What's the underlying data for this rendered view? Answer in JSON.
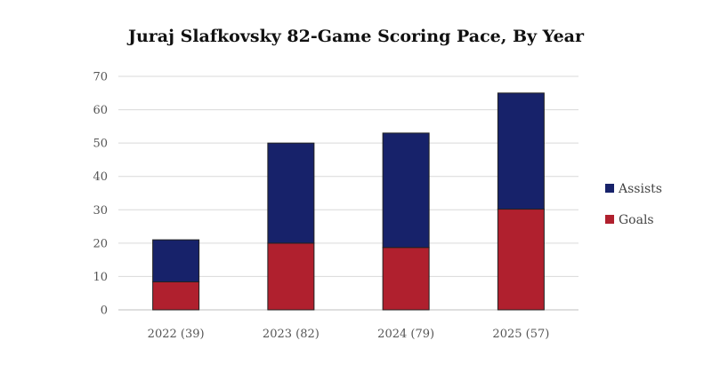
{
  "chart_data": {
    "type": "bar",
    "stacked": true,
    "title": "Juraj Slafkovsky 82-Game Scoring Pace, By Year",
    "xlabel": "",
    "ylabel": "",
    "categories": [
      "2022 (39)",
      "2023 (82)",
      "2024 (79)",
      "2025 (57)"
    ],
    "series": [
      {
        "name": "Goals",
        "color": "#b0202e",
        "values": [
          8.4,
          20,
          18.7,
          30.2
        ]
      },
      {
        "name": "Assists",
        "color": "#17226a",
        "values": [
          12.6,
          30,
          34.3,
          34.8
        ]
      }
    ],
    "ylim": [
      0,
      70
    ],
    "yticks": [
      0,
      10,
      20,
      30,
      40,
      50,
      60,
      70
    ],
    "grid": true,
    "legend": "right"
  }
}
